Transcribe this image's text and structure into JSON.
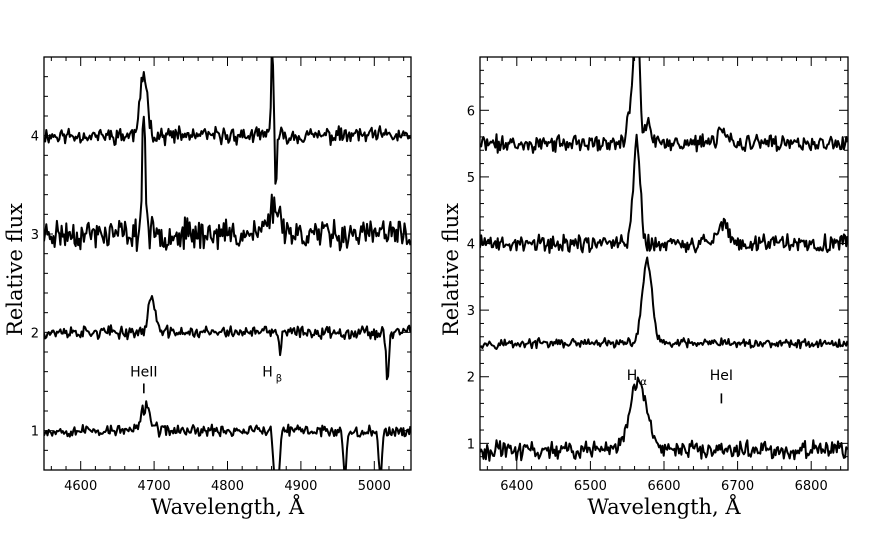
{
  "chart_data": [
    {
      "type": "line",
      "title": "",
      "xlabel": "Wavelength, Å",
      "ylabel": "Relative flux",
      "xlim": [
        4550,
        5050
      ],
      "ylim": [
        0.6,
        4.8
      ],
      "xticks": [
        4600,
        4700,
        4800,
        4900,
        5000
      ],
      "yticks": [
        1,
        2,
        3,
        4
      ],
      "x_tick_labels": [
        "4600",
        "4700",
        "4800",
        "4900",
        "5000"
      ],
      "y_tick_labels": [
        "1",
        "2",
        "3",
        "4"
      ],
      "grid": false,
      "annotations": [
        {
          "text": "HeII",
          "subscript": "",
          "x": 4686,
          "y": 1.55,
          "marker_y": [
            1.38,
            1.48
          ]
        },
        {
          "text": "H",
          "subscript": "β",
          "x": 4861,
          "y": 1.55,
          "marker_y": []
        }
      ],
      "series": [
        {
          "offset": 4.0,
          "noise": 0.06,
          "seed": 11,
          "features": [
            {
              "center": 4686,
              "amp": 0.62,
              "sigma": 5
            },
            {
              "center": 4861,
              "amp": 0.95,
              "sigma": 1.6
            },
            {
              "center": 4866,
              "amp": -0.55,
              "sigma": 1.4
            }
          ]
        },
        {
          "offset": 3.0,
          "noise": 0.11,
          "seed": 23,
          "features": [
            {
              "center": 4686,
              "amp": 1.25,
              "sigma": 2.2
            },
            {
              "center": 4864,
              "amp": 0.28,
              "sigma": 9
            }
          ]
        },
        {
          "offset": 2.0,
          "noise": 0.045,
          "seed": 37,
          "features": [
            {
              "center": 4697,
              "amp": 0.38,
              "sigma": 4.5
            },
            {
              "center": 4872,
              "amp": -0.22,
              "sigma": 1.5
            },
            {
              "center": 5018,
              "amp": -0.5,
              "sigma": 1.8
            }
          ]
        },
        {
          "offset": 1.0,
          "noise": 0.045,
          "seed": 53,
          "features": [
            {
              "center": 4689,
              "amp": 0.25,
              "sigma": 6
            },
            {
              "center": 4865,
              "amp": -0.5,
              "sigma": 2.5
            },
            {
              "center": 4869,
              "amp": -0.45,
              "sigma": 2.5
            },
            {
              "center": 4960,
              "amp": -0.45,
              "sigma": 2.2
            },
            {
              "center": 5008,
              "amp": -0.45,
              "sigma": 2.5
            }
          ]
        }
      ]
    },
    {
      "type": "line",
      "title": "",
      "xlabel": "Wavelength, Å",
      "ylabel": "Relative flux",
      "xlim": [
        6350,
        6850
      ],
      "ylim": [
        0.6,
        6.8
      ],
      "xticks": [
        6400,
        6500,
        6600,
        6700,
        6800
      ],
      "yticks": [
        1,
        2,
        3,
        4,
        5,
        6
      ],
      "x_tick_labels": [
        "6400",
        "6500",
        "6600",
        "6700",
        "6800"
      ],
      "y_tick_labels": [
        "1",
        "2",
        "3",
        "4",
        "5",
        "6"
      ],
      "grid": false,
      "annotations": [
        {
          "text": "H",
          "subscript": "α",
          "x": 6563,
          "y": 1.95,
          "marker_y": []
        },
        {
          "text": "HeI",
          "subscript": "",
          "x": 6678,
          "y": 1.95,
          "marker_y": [
            1.6,
            1.75
          ]
        }
      ],
      "series": [
        {
          "offset": 5.5,
          "noise": 0.09,
          "seed": 71,
          "features": [
            {
              "center": 6563,
              "amp": 2.2,
              "sigma": 3.5
            },
            {
              "center": 6555,
              "amp": 0.5,
              "sigma": 5
            },
            {
              "center": 6578,
              "amp": 0.35,
              "sigma": 4
            },
            {
              "center": 6680,
              "amp": 0.22,
              "sigma": 6
            }
          ]
        },
        {
          "offset": 4.0,
          "noise": 0.1,
          "seed": 89,
          "features": [
            {
              "center": 6563,
              "amp": 1.6,
              "sigma": 4.5
            },
            {
              "center": 6680,
              "amp": 0.32,
              "sigma": 7
            }
          ]
        },
        {
          "offset": 2.5,
          "noise": 0.05,
          "seed": 97,
          "features": [
            {
              "center": 6577,
              "amp": 1.25,
              "sigma": 6.5
            }
          ]
        },
        {
          "offset": 0.9,
          "noise": 0.1,
          "seed": 113,
          "features": [
            {
              "center": 6565,
              "amp": 1.0,
              "sigma": 12
            }
          ]
        }
      ]
    }
  ]
}
